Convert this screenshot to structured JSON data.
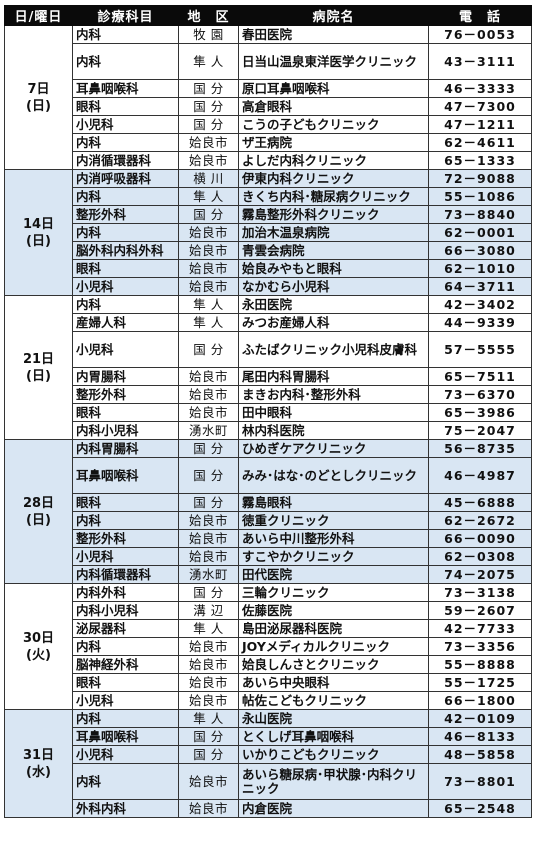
{
  "header": {
    "date": "日/曜日",
    "dept": "診療科目",
    "area": "地　区",
    "hospital": "病院名",
    "tel": "電　話"
  },
  "groups": [
    {
      "day": "7日",
      "weekday": "(日)",
      "shaded": false,
      "rows": [
        {
          "dept": "内科",
          "area": "牧 園",
          "hospital": "春田医院",
          "tel": "76－0053",
          "tall": false
        },
        {
          "dept": "内科",
          "area": "隼 人",
          "hospital": "日当山温泉東洋医学クリニック",
          "tel": "43－3111",
          "tall": true
        },
        {
          "dept": "耳鼻咽喉科",
          "area": "国 分",
          "hospital": "原口耳鼻咽喉科",
          "tel": "46－3333",
          "tall": false
        },
        {
          "dept": "眼科",
          "area": "国 分",
          "hospital": "高倉眼科",
          "tel": "47－7300",
          "tall": false
        },
        {
          "dept": "小児科",
          "area": "国 分",
          "hospital": "こうの子どもクリニック",
          "tel": "47－1211",
          "tall": false
        },
        {
          "dept": "内科",
          "area": "姶良市",
          "hospital": "ザ王病院",
          "tel": "62－4611",
          "tall": false
        },
        {
          "dept": "内消循環器科",
          "area": "姶良市",
          "hospital": "よしだ内科クリニック",
          "tel": "65－1333",
          "tall": false
        }
      ]
    },
    {
      "day": "14日",
      "weekday": "(日)",
      "shaded": true,
      "rows": [
        {
          "dept": "内消呼吸器科",
          "area": "横 川",
          "hospital": "伊東内科クリニック",
          "tel": "72－9088",
          "tall": false
        },
        {
          "dept": "内科",
          "area": "隼 人",
          "hospital": "きくち内科･糖尿病クリニック",
          "tel": "55－1086",
          "tall": false
        },
        {
          "dept": "整形外科",
          "area": "国 分",
          "hospital": "霧島整形外科クリニック",
          "tel": "73－8840",
          "tall": false
        },
        {
          "dept": "内科",
          "area": "姶良市",
          "hospital": "加治木温泉病院",
          "tel": "62－0001",
          "tall": false
        },
        {
          "dept": "脳外科内科外科",
          "area": "姶良市",
          "hospital": "青雲会病院",
          "tel": "66－3080",
          "tall": false
        },
        {
          "dept": "眼科",
          "area": "姶良市",
          "hospital": "姶良みやもと眼科",
          "tel": "62－1010",
          "tall": false
        },
        {
          "dept": "小児科",
          "area": "姶良市",
          "hospital": "なかむら小児科",
          "tel": "64－3711",
          "tall": false
        }
      ]
    },
    {
      "day": "21日",
      "weekday": "(日)",
      "shaded": false,
      "rows": [
        {
          "dept": "内科",
          "area": "隼 人",
          "hospital": "永田医院",
          "tel": "42－3402",
          "tall": false
        },
        {
          "dept": "産婦人科",
          "area": "隼 人",
          "hospital": "みつお産婦人科",
          "tel": "44－9339",
          "tall": false
        },
        {
          "dept": "小児科",
          "area": "国 分",
          "hospital": "ふたばクリニック小児科皮膚科",
          "tel": "57－5555",
          "tall": true
        },
        {
          "dept": "内胃腸科",
          "area": "姶良市",
          "hospital": "尾田内科胃腸科",
          "tel": "65－7511",
          "tall": false
        },
        {
          "dept": "整形外科",
          "area": "姶良市",
          "hospital": "まきお内科･整形外科",
          "tel": "73－6370",
          "tall": false
        },
        {
          "dept": "眼科",
          "area": "姶良市",
          "hospital": "田中眼科",
          "tel": "65－3986",
          "tall": false
        },
        {
          "dept": "内科小児科",
          "area": "湧水町",
          "hospital": "林内科医院",
          "tel": "75－2047",
          "tall": false
        }
      ]
    },
    {
      "day": "28日",
      "weekday": "(日)",
      "shaded": true,
      "rows": [
        {
          "dept": "内科胃腸科",
          "area": "国 分",
          "hospital": "ひめぎケアクリニック",
          "tel": "56－8735",
          "tall": false
        },
        {
          "dept": "耳鼻咽喉科",
          "area": "国 分",
          "hospital": "みみ･はな･のどとしクリニック",
          "tel": "46－4987",
          "tall": true
        },
        {
          "dept": "眼科",
          "area": "国 分",
          "hospital": "霧島眼科",
          "tel": "45－6888",
          "tall": false
        },
        {
          "dept": "内科",
          "area": "姶良市",
          "hospital": "徳重クリニック",
          "tel": "62－2672",
          "tall": false
        },
        {
          "dept": "整形外科",
          "area": "姶良市",
          "hospital": "あいら中川整形外科",
          "tel": "66－0090",
          "tall": false
        },
        {
          "dept": "小児科",
          "area": "姶良市",
          "hospital": "すこやかクリニック",
          "tel": "62－0308",
          "tall": false
        },
        {
          "dept": "内科循環器科",
          "area": "湧水町",
          "hospital": "田代医院",
          "tel": "74－2075",
          "tall": false
        }
      ]
    },
    {
      "day": "30日",
      "weekday": "(火)",
      "shaded": false,
      "rows": [
        {
          "dept": "内科外科",
          "area": "国 分",
          "hospital": "三輪クリニック",
          "tel": "73－3138",
          "tall": false
        },
        {
          "dept": "内科小児科",
          "area": "溝 辺",
          "hospital": "佐藤医院",
          "tel": "59－2607",
          "tall": false
        },
        {
          "dept": "泌尿器科",
          "area": "隼 人",
          "hospital": "島田泌尿器科医院",
          "tel": "42－7733",
          "tall": false
        },
        {
          "dept": "内科",
          "area": "姶良市",
          "hospital": "JOYメディカルクリニック",
          "tel": "73－3356",
          "tall": false
        },
        {
          "dept": "脳神経外科",
          "area": "姶良市",
          "hospital": "姶良しんさとクリニック",
          "tel": "55－8888",
          "tall": false
        },
        {
          "dept": "眼科",
          "area": "姶良市",
          "hospital": "あいら中央眼科",
          "tel": "55－1725",
          "tall": false
        },
        {
          "dept": "小児科",
          "area": "姶良市",
          "hospital": "帖佐こどもクリニック",
          "tel": "66－1800",
          "tall": false
        }
      ]
    },
    {
      "day": "31日",
      "weekday": "(水)",
      "shaded": true,
      "rows": [
        {
          "dept": "内科",
          "area": "隼 人",
          "hospital": "永山医院",
          "tel": "42－0109",
          "tall": false
        },
        {
          "dept": "耳鼻咽喉科",
          "area": "国 分",
          "hospital": "とくしげ耳鼻咽喉科",
          "tel": "46－8133",
          "tall": false
        },
        {
          "dept": "小児科",
          "area": "国 分",
          "hospital": "いかりこどもクリニック",
          "tel": "48－5858",
          "tall": false
        },
        {
          "dept": "内科",
          "area": "姶良市",
          "hospital": "あいら糖尿病･甲状腺･内科クリニック",
          "tel": "73－8801",
          "tall": true
        },
        {
          "dept": "外科内科",
          "area": "姶良市",
          "hospital": "内倉医院",
          "tel": "65－2548",
          "tall": false
        }
      ]
    }
  ]
}
